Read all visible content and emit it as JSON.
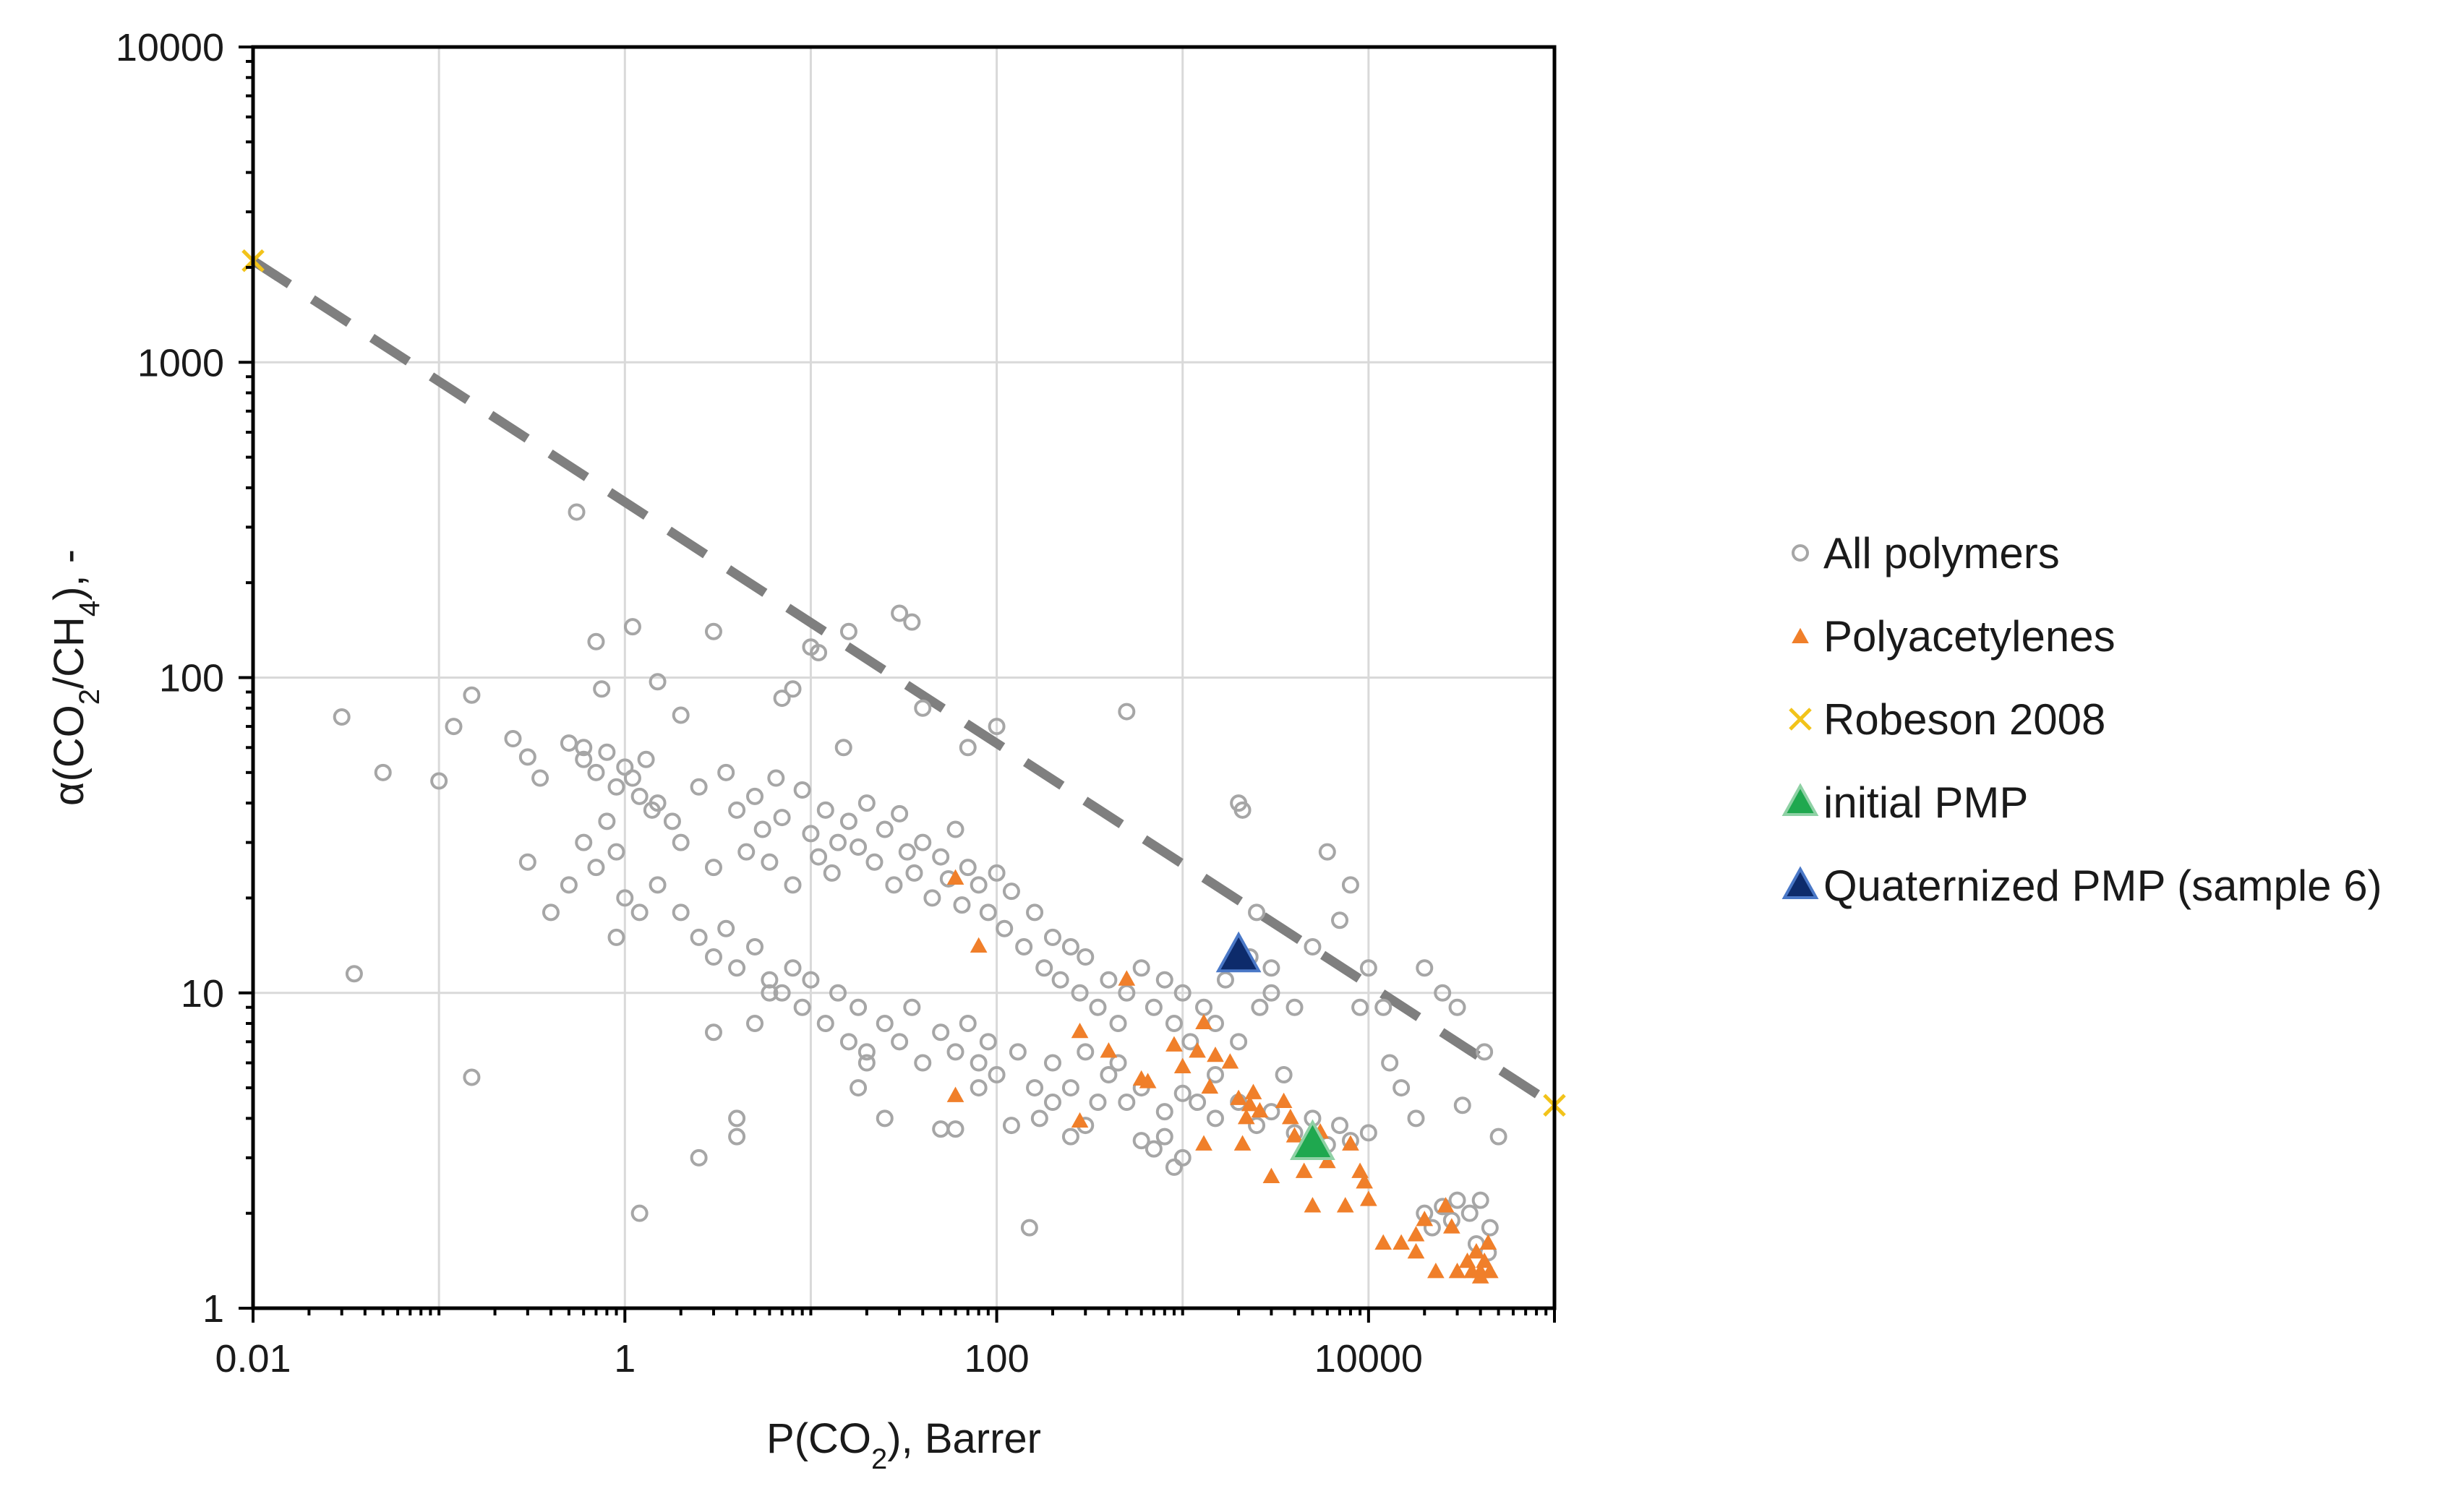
{
  "chart_data": {
    "type": "scatter",
    "xlabel": "P(CO2), Barrer",
    "ylabel": "α(CO2/CH4), -",
    "xscale": "log",
    "yscale": "log",
    "xlim": [
      0.01,
      100000
    ],
    "ylim": [
      1,
      10000
    ],
    "xticks": [
      "0.01",
      "1",
      "100",
      "10000"
    ],
    "yticks": [
      "1",
      "10",
      "100",
      "1000",
      "10000"
    ],
    "grid": true,
    "legend_position": "right",
    "colors": {
      "all_polymers": "#a6a6a6",
      "polyacetylenes": "#f07f2a",
      "robeson": "#f2c31a",
      "initial_pmp": "#1fa84f",
      "quaternized_pmp": "#0d2b6b",
      "upper_bound_line": "#7f7f7f",
      "grid": "#d9d9d9"
    },
    "legend": [
      {
        "key": "all_polymers",
        "label": "All polymers",
        "marker": "circle"
      },
      {
        "key": "polyacetylenes",
        "label": "Polyacetylenes",
        "marker": "triangle"
      },
      {
        "key": "robeson",
        "label": "Robeson 2008",
        "marker": "x"
      },
      {
        "key": "initial_pmp",
        "label": "initial PMP",
        "marker": "triangle"
      },
      {
        "key": "quaternized_pmp",
        "label": "Quaternized PMP (sample 6)",
        "marker": "triangle"
      }
    ],
    "series": [
      {
        "name": "All polymers",
        "key": "all_polymers",
        "points": [
          [
            0.03,
            75
          ],
          [
            0.035,
            11.5
          ],
          [
            0.05,
            50
          ],
          [
            0.1,
            47
          ],
          [
            0.12,
            70
          ],
          [
            0.15,
            5.4
          ],
          [
            0.15,
            88
          ],
          [
            0.25,
            64
          ],
          [
            0.3,
            56
          ],
          [
            0.3,
            26
          ],
          [
            0.35,
            48
          ],
          [
            0.4,
            18
          ],
          [
            0.55,
            335
          ],
          [
            0.6,
            60
          ],
          [
            0.7,
            130
          ],
          [
            0.75,
            92
          ],
          [
            0.9,
            15
          ],
          [
            1.1,
            145
          ],
          [
            1.2,
            2
          ],
          [
            1.5,
            97
          ],
          [
            2,
            76
          ],
          [
            3,
            140
          ],
          [
            2.5,
            3
          ],
          [
            3,
            7.5
          ],
          [
            4,
            4
          ],
          [
            4,
            3.5
          ],
          [
            5,
            8
          ],
          [
            6,
            10
          ],
          [
            7,
            86
          ],
          [
            8,
            92
          ],
          [
            10,
            125
          ],
          [
            11,
            120
          ],
          [
            15,
            60
          ],
          [
            16,
            140
          ],
          [
            18,
            5
          ],
          [
            20,
            6
          ],
          [
            25,
            4
          ],
          [
            30,
            160
          ],
          [
            35,
            150
          ],
          [
            40,
            80
          ],
          [
            50,
            3.7
          ],
          [
            60,
            3.7
          ],
          [
            70,
            60
          ],
          [
            80,
            5
          ],
          [
            100,
            70
          ],
          [
            120,
            3.8
          ],
          [
            150,
            1.8
          ],
          [
            170,
            4
          ],
          [
            200,
            4.5
          ],
          [
            250,
            3.5
          ],
          [
            300,
            3.8
          ],
          [
            350,
            4.5
          ],
          [
            450,
            6
          ],
          [
            500,
            78
          ],
          [
            600,
            3.4
          ],
          [
            700,
            3.2
          ],
          [
            800,
            3.5
          ],
          [
            900,
            2.8
          ],
          [
            1000,
            3
          ],
          [
            1200,
            4.5
          ],
          [
            1500,
            5.5
          ],
          [
            2000,
            40
          ],
          [
            2100,
            38
          ],
          [
            2500,
            18
          ],
          [
            3000,
            12
          ],
          [
            3500,
            5.5
          ],
          [
            4000,
            9
          ],
          [
            5000,
            14
          ],
          [
            6000,
            28
          ],
          [
            7000,
            17
          ],
          [
            8000,
            22
          ],
          [
            9000,
            9
          ],
          [
            10000,
            12
          ],
          [
            12000,
            9
          ],
          [
            13000,
            6
          ],
          [
            15000,
            5
          ],
          [
            18000,
            4
          ],
          [
            20000,
            12
          ],
          [
            25000,
            10
          ],
          [
            30000,
            9
          ],
          [
            32000,
            4.4
          ],
          [
            35000,
            2
          ],
          [
            40000,
            2.2
          ],
          [
            45000,
            1.8
          ],
          [
            50000,
            3.5
          ],
          [
            42000,
            6.5
          ],
          [
            1.5,
            40
          ],
          [
            1.8,
            35
          ],
          [
            2,
            30
          ],
          [
            2.5,
            45
          ],
          [
            3,
            25
          ],
          [
            3.5,
            50
          ],
          [
            4,
            38
          ],
          [
            4.5,
            28
          ],
          [
            5,
            42
          ],
          [
            5.5,
            33
          ],
          [
            6,
            26
          ],
          [
            6.5,
            48
          ],
          [
            7,
            36
          ],
          [
            8,
            22
          ],
          [
            9,
            44
          ],
          [
            10,
            32
          ],
          [
            11,
            27
          ],
          [
            12,
            38
          ],
          [
            13,
            24
          ],
          [
            14,
            30
          ],
          [
            16,
            35
          ],
          [
            18,
            29
          ],
          [
            20,
            40
          ],
          [
            22,
            26
          ],
          [
            25,
            33
          ],
          [
            28,
            22
          ],
          [
            30,
            37
          ],
          [
            33,
            28
          ],
          [
            36,
            24
          ],
          [
            40,
            30
          ],
          [
            45,
            20
          ],
          [
            50,
            27
          ],
          [
            55,
            23
          ],
          [
            60,
            33
          ],
          [
            65,
            19
          ],
          [
            70,
            25
          ],
          [
            80,
            22
          ],
          [
            90,
            18
          ],
          [
            100,
            24
          ],
          [
            110,
            16
          ],
          [
            120,
            21
          ],
          [
            140,
            14
          ],
          [
            160,
            18
          ],
          [
            180,
            12
          ],
          [
            200,
            15
          ],
          [
            220,
            11
          ],
          [
            250,
            14
          ],
          [
            280,
            10
          ],
          [
            300,
            13
          ],
          [
            350,
            9
          ],
          [
            400,
            11
          ],
          [
            450,
            8
          ],
          [
            500,
            10
          ],
          [
            600,
            12
          ],
          [
            700,
            9
          ],
          [
            800,
            11
          ],
          [
            900,
            8
          ],
          [
            1000,
            10
          ],
          [
            1100,
            7
          ],
          [
            1300,
            9
          ],
          [
            1500,
            8
          ],
          [
            1700,
            11
          ],
          [
            2000,
            7
          ],
          [
            2300,
            13
          ],
          [
            2600,
            9
          ],
          [
            3000,
            10
          ],
          [
            0.5,
            62
          ],
          [
            0.6,
            55
          ],
          [
            0.7,
            50
          ],
          [
            0.8,
            58
          ],
          [
            0.9,
            45
          ],
          [
            1,
            52
          ],
          [
            1.1,
            48
          ],
          [
            1.2,
            42
          ],
          [
            1.3,
            55
          ],
          [
            1.4,
            38
          ],
          [
            0.5,
            22
          ],
          [
            0.6,
            30
          ],
          [
            0.7,
            25
          ],
          [
            0.8,
            35
          ],
          [
            0.9,
            28
          ],
          [
            1,
            20
          ],
          [
            1.2,
            18
          ],
          [
            1.5,
            22
          ],
          [
            2,
            18
          ],
          [
            2.5,
            15
          ],
          [
            3,
            13
          ],
          [
            3.5,
            16
          ],
          [
            4,
            12
          ],
          [
            5,
            14
          ],
          [
            6,
            11
          ],
          [
            7,
            10
          ],
          [
            8,
            12
          ],
          [
            9,
            9
          ],
          [
            10,
            11
          ],
          [
            12,
            8
          ],
          [
            14,
            10
          ],
          [
            16,
            7
          ],
          [
            18,
            9
          ],
          [
            20,
            6.5
          ],
          [
            25,
            8
          ],
          [
            30,
            7
          ],
          [
            35,
            9
          ],
          [
            40,
            6
          ],
          [
            50,
            7.5
          ],
          [
            60,
            6.5
          ],
          [
            70,
            8
          ],
          [
            80,
            6
          ],
          [
            90,
            7
          ],
          [
            100,
            5.5
          ],
          [
            130,
            6.5
          ],
          [
            160,
            5
          ],
          [
            200,
            6
          ],
          [
            250,
            5
          ],
          [
            300,
            6.5
          ],
          [
            400,
            5.5
          ],
          [
            500,
            4.5
          ],
          [
            600,
            5
          ],
          [
            800,
            4.2
          ],
          [
            1000,
            4.8
          ],
          [
            1500,
            4
          ],
          [
            2000,
            4.5
          ],
          [
            2500,
            3.8
          ],
          [
            3000,
            4.2
          ],
          [
            4000,
            3.6
          ],
          [
            5000,
            4
          ],
          [
            6000,
            3.3
          ],
          [
            7000,
            3.8
          ],
          [
            8000,
            3.4
          ],
          [
            10000,
            3.6
          ],
          [
            20000,
            2
          ],
          [
            22000,
            1.8
          ],
          [
            25000,
            2.1
          ],
          [
            28000,
            1.9
          ],
          [
            30000,
            2.2
          ],
          [
            38000,
            1.6
          ],
          [
            44000,
            1.5
          ]
        ]
      },
      {
        "name": "Polyacetylenes",
        "key": "polyacetylenes",
        "points": [
          [
            60,
            23
          ],
          [
            80,
            14
          ],
          [
            60,
            4.7
          ],
          [
            280,
            7.5
          ],
          [
            280,
            3.9
          ],
          [
            400,
            6.5
          ],
          [
            500,
            11
          ],
          [
            600,
            5.3
          ],
          [
            650,
            5.2
          ],
          [
            900,
            6.8
          ],
          [
            1000,
            5.8
          ],
          [
            1200,
            6.5
          ],
          [
            1300,
            8
          ],
          [
            1400,
            5
          ],
          [
            1300,
            3.3
          ],
          [
            1500,
            6.3
          ],
          [
            1800,
            6
          ],
          [
            2000,
            4.6
          ],
          [
            2200,
            4
          ],
          [
            2300,
            4.4
          ],
          [
            2100,
            3.3
          ],
          [
            2600,
            4.2
          ],
          [
            2400,
            4.8
          ],
          [
            3000,
            2.6
          ],
          [
            3500,
            4.5
          ],
          [
            3800,
            4
          ],
          [
            4000,
            3.5
          ],
          [
            4500,
            2.7
          ],
          [
            5000,
            2.1
          ],
          [
            5500,
            3.6
          ],
          [
            6000,
            2.9
          ],
          [
            7500,
            2.1
          ],
          [
            8000,
            3.3
          ],
          [
            9000,
            2.7
          ],
          [
            9500,
            2.5
          ],
          [
            10000,
            2.2
          ],
          [
            12000,
            1.6
          ],
          [
            15000,
            1.6
          ],
          [
            20000,
            1.9
          ],
          [
            18000,
            1.7
          ],
          [
            18000,
            1.5
          ],
          [
            23000,
            1.3
          ],
          [
            26000,
            2.1
          ],
          [
            28000,
            1.8
          ],
          [
            30000,
            1.3
          ],
          [
            34000,
            1.4
          ],
          [
            36000,
            1.3
          ],
          [
            38000,
            1.5
          ],
          [
            40000,
            1.3
          ],
          [
            42000,
            1.4
          ],
          [
            44000,
            1.6
          ],
          [
            45000,
            1.3
          ],
          [
            40000,
            1.25
          ]
        ]
      },
      {
        "name": "Robeson 2008",
        "key": "robeson",
        "points": [
          [
            0.01,
            2100
          ],
          [
            100000,
            4.4
          ]
        ]
      },
      {
        "name": "initial PMP",
        "key": "initial_pmp",
        "points": [
          [
            5000,
            3.3
          ]
        ]
      },
      {
        "name": "Quaternized PMP (sample 6)",
        "key": "quaternized_pmp",
        "points": [
          [
            2000,
            13
          ]
        ]
      }
    ],
    "upper_bound_line": [
      [
        0.01,
        2100
      ],
      [
        100000,
        4.4
      ]
    ]
  }
}
